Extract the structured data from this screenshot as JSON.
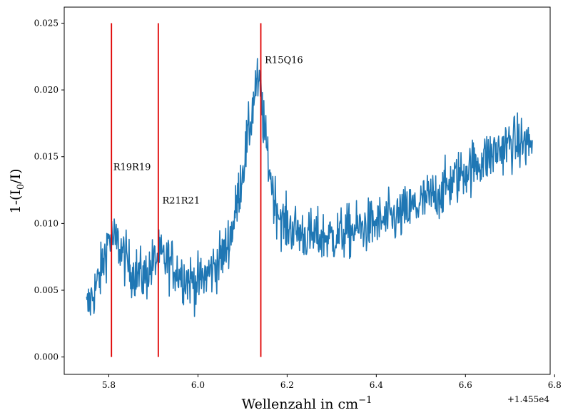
{
  "chart_data": {
    "type": "line",
    "title": "",
    "xlabel": "Wellenzahl in cm",
    "xlabel_superscript": "−1",
    "ylabel": "1-(I",
    "ylabel_subscript": "0",
    "ylabel_suffix": "/I)",
    "x_offset_label": "+1.455e4",
    "xlim": [
      5.7,
      6.79
    ],
    "ylim": [
      -0.0013,
      0.0262
    ],
    "x_ticks": [
      5.8,
      6.0,
      6.2,
      6.4,
      6.6,
      6.8
    ],
    "x_tick_labels": [
      "5.8",
      "6.0",
      "6.2",
      "6.4",
      "6.6",
      "6.8"
    ],
    "y_ticks": [
      0.0,
      0.005,
      0.01,
      0.015,
      0.02,
      0.025
    ],
    "y_tick_labels": [
      "0.000",
      "0.005",
      "0.010",
      "0.015",
      "0.020",
      "0.025"
    ],
    "grid": false,
    "series": [
      {
        "color": "#1f77b4",
        "x_range": [
          5.75,
          6.75
        ],
        "envelope": {
          "x": [
            5.75,
            5.78,
            5.8,
            5.82,
            5.85,
            5.88,
            5.91,
            5.94,
            5.97,
            6.0,
            6.03,
            6.06,
            6.08,
            6.1,
            6.12,
            6.13,
            6.14,
            6.15,
            6.17,
            6.19,
            6.22,
            6.25,
            6.3,
            6.35,
            6.4,
            6.45,
            6.5,
            6.55,
            6.6,
            6.65,
            6.7,
            6.75
          ],
          "y": [
            0.0035,
            0.006,
            0.009,
            0.0085,
            0.0065,
            0.006,
            0.0075,
            0.007,
            0.006,
            0.0055,
            0.0065,
            0.0078,
            0.01,
            0.014,
            0.018,
            0.0205,
            0.02,
            0.0165,
            0.012,
            0.01,
            0.0095,
            0.009,
            0.009,
            0.0095,
            0.01,
            0.0105,
            0.0115,
            0.0125,
            0.014,
            0.015,
            0.016,
            0.016
          ]
        },
        "noise_amplitude": 0.0018
      }
    ],
    "vlines": {
      "color": "#e00000",
      "ymin": 0.0,
      "ymax": 0.025,
      "x": [
        5.806,
        5.911,
        6.141
      ]
    },
    "annotations": [
      {
        "text": "R19R19",
        "x": 5.81,
        "y": 0.014
      },
      {
        "text": "R21R21",
        "x": 5.92,
        "y": 0.0115
      },
      {
        "text": "R15Q16",
        "x": 6.15,
        "y": 0.022
      }
    ]
  }
}
